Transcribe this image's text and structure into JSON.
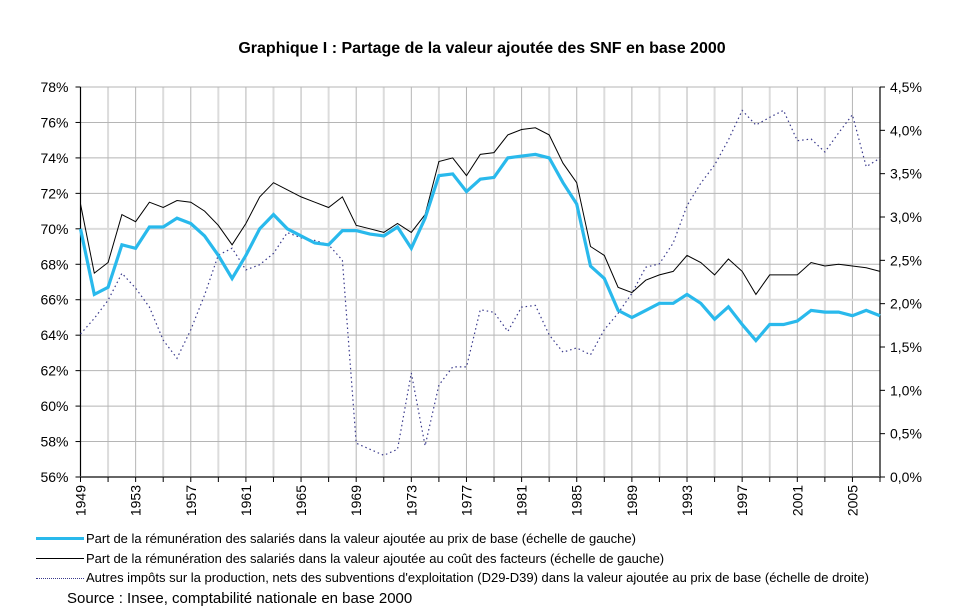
{
  "chart_data": {
    "type": "line",
    "title": "Graphique I : Partage de la valeur ajoutée des SNF en base 2000",
    "xlabel": "",
    "ylabel_left": "",
    "ylabel_right": "",
    "x": [
      1949,
      1950,
      1951,
      1952,
      1953,
      1954,
      1955,
      1956,
      1957,
      1958,
      1959,
      1960,
      1961,
      1962,
      1963,
      1964,
      1965,
      1966,
      1967,
      1968,
      1969,
      1970,
      1971,
      1972,
      1973,
      1974,
      1975,
      1976,
      1977,
      1978,
      1979,
      1980,
      1981,
      1982,
      1983,
      1984,
      1985,
      1986,
      1987,
      1988,
      1989,
      1990,
      1991,
      1992,
      1993,
      1994,
      1995,
      1996,
      1997,
      1998,
      1999,
      2000,
      2001,
      2002,
      2003,
      2004,
      2005,
      2006,
      2007
    ],
    "xlim": [
      1949,
      2007
    ],
    "x_tick_labels": [
      "1949",
      "1953",
      "1957",
      "1961",
      "1965",
      "1969",
      "1973",
      "1977",
      "1981",
      "1985",
      "1989",
      "1993",
      "1997",
      "2001",
      "2005"
    ],
    "ylim_left": [
      56,
      78
    ],
    "y_left_tick_labels": [
      "56%",
      "58%",
      "60%",
      "62%",
      "64%",
      "66%",
      "68%",
      "70%",
      "72%",
      "74%",
      "76%",
      "78%"
    ],
    "ylim_right": [
      0,
      4.5
    ],
    "y_right_tick_labels": [
      "0,0%",
      "0,5%",
      "1,0%",
      "1,5%",
      "2,0%",
      "2,5%",
      "3,0%",
      "3,5%",
      "4,0%",
      "4,5%"
    ],
    "grid": true,
    "legend_position": "bottom",
    "series": [
      {
        "name": "Part de la rémunération des salariés dans la valeur ajoutée au prix de base (échelle de gauche)",
        "axis": "left",
        "color": "#29b9ec",
        "style": "solid-thick",
        "values": [
          70.0,
          66.3,
          66.7,
          69.1,
          68.9,
          70.1,
          70.1,
          70.6,
          70.3,
          69.6,
          68.5,
          67.2,
          68.5,
          70.0,
          70.8,
          70.0,
          69.6,
          69.2,
          69.1,
          69.9,
          69.9,
          69.7,
          69.6,
          70.1,
          68.9,
          70.6,
          73.0,
          73.1,
          72.1,
          72.8,
          72.9,
          74.0,
          74.1,
          74.2,
          74.0,
          72.6,
          71.4,
          67.9,
          67.2,
          65.4,
          65.0,
          65.4,
          65.8,
          65.8,
          66.3,
          65.8,
          64.9,
          65.6,
          64.6,
          63.7,
          64.6,
          64.6,
          64.8,
          65.4,
          65.3,
          65.3,
          65.1,
          65.4,
          65.1
        ]
      },
      {
        "name": "Part de la rémunération des salariés dans la valeur ajoutée au coût des facteurs (échelle de gauche)",
        "axis": "left",
        "color": "#000000",
        "style": "solid-thin",
        "values": [
          71.4,
          67.5,
          68.1,
          70.8,
          70.4,
          71.5,
          71.2,
          71.6,
          71.5,
          71.0,
          70.2,
          69.1,
          70.3,
          71.8,
          72.6,
          72.2,
          71.8,
          71.5,
          71.2,
          71.8,
          70.2,
          70.0,
          69.8,
          70.3,
          69.8,
          70.8,
          73.8,
          74.0,
          73.0,
          74.2,
          74.3,
          75.3,
          75.6,
          75.7,
          75.3,
          73.7,
          72.6,
          69.0,
          68.5,
          66.7,
          66.4,
          67.1,
          67.4,
          67.6,
          68.5,
          68.1,
          67.4,
          68.3,
          67.6,
          66.3,
          67.4,
          67.4,
          67.4,
          68.1,
          67.9,
          68.0,
          67.9,
          67.8,
          67.6
        ]
      },
      {
        "name": "Autres impôts sur la production, nets des subventions d'exploitation (D29-D39) dans la valeur ajoutée au prix de base (échelle de droite)",
        "axis": "right",
        "color": "#3a3a8c",
        "style": "dotted",
        "values": [
          1.65,
          1.83,
          2.04,
          2.35,
          2.18,
          1.96,
          1.58,
          1.37,
          1.7,
          2.1,
          2.56,
          2.64,
          2.39,
          2.45,
          2.58,
          2.82,
          2.76,
          2.73,
          2.68,
          2.5,
          0.39,
          0.32,
          0.25,
          0.32,
          1.2,
          0.36,
          1.06,
          1.27,
          1.27,
          1.93,
          1.9,
          1.68,
          1.96,
          1.98,
          1.64,
          1.44,
          1.49,
          1.41,
          1.7,
          1.89,
          2.12,
          2.42,
          2.46,
          2.7,
          3.13,
          3.39,
          3.6,
          3.89,
          4.23,
          4.06,
          4.15,
          4.23,
          3.88,
          3.9,
          3.75,
          3.97,
          4.18,
          3.58,
          3.68
        ]
      }
    ]
  },
  "source": "Source : Insee, comptabilité nationale en base 2000"
}
